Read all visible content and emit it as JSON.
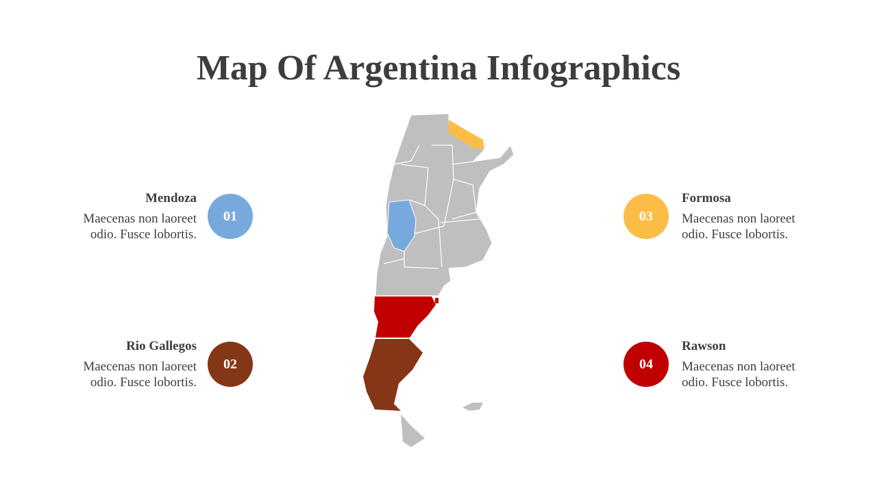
{
  "title": "Map Of Argentina Infographics",
  "items": [
    {
      "number": "01",
      "name": "Mendoza",
      "text": "Maecenas non laoreet odio. Fusce lobortis.",
      "color": "#78a9dc"
    },
    {
      "number": "02",
      "name": "Rio Gallegos",
      "text": "Maecenas non laoreet odio. Fusce lobortis.",
      "color": "#843616"
    },
    {
      "number": "03",
      "name": "Formosa",
      "text": "Maecenas non laoreet odio. Fusce lobortis.",
      "color": "#fbbd45"
    },
    {
      "number": "04",
      "name": "Rawson",
      "text": "Maecenas non laoreet odio. Fusce lobortis.",
      "color": "#c00000"
    }
  ]
}
